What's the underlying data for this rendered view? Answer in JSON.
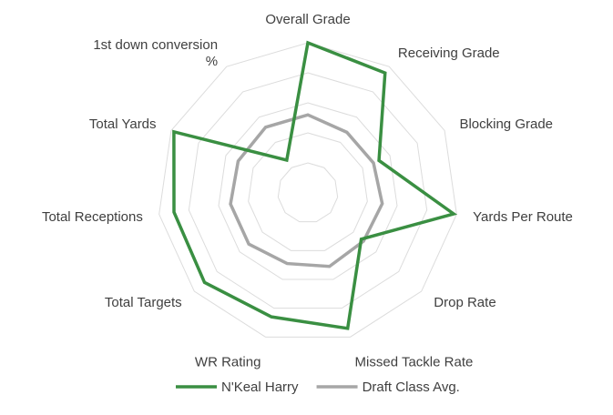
{
  "chart_data": {
    "type": "radar",
    "categories": [
      "Overall Grade",
      "Receiving Grade",
      "Blocking Grade",
      "Yards Per Route",
      "Drop Rate",
      "Missed Tackle Rate",
      "WR Rating",
      "Total Targets",
      "Total Receptions",
      "Total Yards",
      "1st down conversion %"
    ],
    "rmax": 5,
    "rings": 5,
    "series": [
      {
        "name": "N'Keal Harry",
        "color": "#3a8f42",
        "values": [
          5.0,
          4.75,
          2.6,
          4.9,
          2.35,
          4.7,
          4.3,
          4.55,
          4.5,
          4.9,
          1.3
        ]
      },
      {
        "name": "Draft Class Avg.",
        "color": "#a6a6a6",
        "values": [
          2.6,
          2.4,
          2.4,
          2.5,
          2.45,
          2.55,
          2.45,
          2.6,
          2.6,
          2.55,
          2.6
        ]
      }
    ],
    "grid": true,
    "legend": "bottom"
  }
}
